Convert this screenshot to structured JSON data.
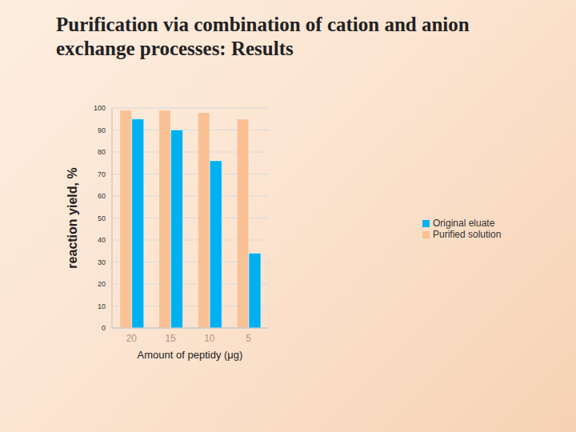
{
  "chart_data": {
    "type": "bar",
    "title": "Purification via combination of cation and anion exchange processes: Results",
    "x_label": "Amount of peptidy (μg)",
    "y_label": "reaction yield, %",
    "categories": [
      "20",
      "15",
      "10",
      "5"
    ],
    "series": [
      {
        "name": "Purified solution",
        "color": "#f9c194",
        "values": [
          99,
          99,
          98,
          95
        ]
      },
      {
        "name": "Original eluate",
        "color": "#00b0f0",
        "values": [
          95,
          90,
          76,
          34
        ]
      }
    ],
    "ylim": [
      0,
      100
    ],
    "yticks": [
      0,
      10,
      20,
      30,
      40,
      50,
      60,
      70,
      80,
      90,
      100
    ],
    "grid": true,
    "legend": "right"
  }
}
